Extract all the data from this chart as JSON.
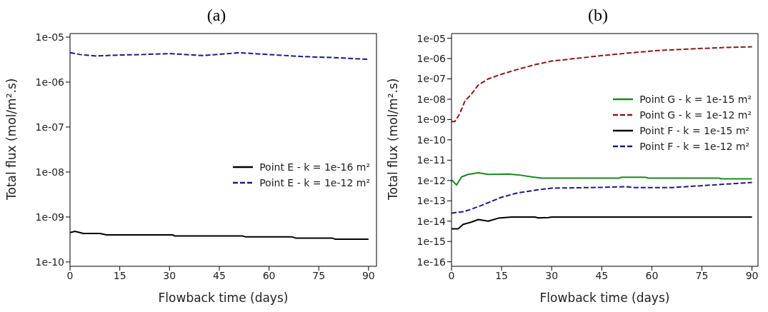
{
  "chart_data": [
    {
      "type": "line",
      "title": "(a)",
      "xlabel": "Flowback time (days)",
      "ylabel": "Total flux (mol/m².s)",
      "log": "y",
      "xlim": [
        0,
        92.4
      ],
      "xticks": [
        0,
        15,
        30,
        45,
        60,
        75,
        90
      ],
      "ylim": [
        8e-11,
        1.2e-05
      ],
      "yticks": [
        {
          "value": 1e-10,
          "label": "1e-10"
        },
        {
          "value": 1e-09,
          "label": "1e-09"
        },
        {
          "value": 1e-08,
          "label": "1e-08"
        },
        {
          "value": 1e-07,
          "label": "1e-07"
        },
        {
          "value": 1e-06,
          "label": "1e-06"
        },
        {
          "value": 1e-05,
          "label": "1e-05"
        }
      ],
      "grid": false,
      "legend": "right",
      "series": [
        {
          "name": "Point E - k = 1e-16 m²",
          "color": "#000000",
          "line_style": "solid",
          "x": [
            0,
            1.5,
            4,
            9,
            11,
            31,
            31.5,
            52,
            53,
            67,
            68,
            79,
            80,
            90
          ],
          "values": [
            4.5e-10,
            4.8e-10,
            4.3e-10,
            4.3e-10,
            4e-10,
            4e-10,
            3.8e-10,
            3.8e-10,
            3.6e-10,
            3.6e-10,
            3.4e-10,
            3.4e-10,
            3.2e-10,
            3.2e-10
          ]
        },
        {
          "name": "Point E - k = 1e-12 m²",
          "color": "#1a1a8c",
          "line_style": "dashed",
          "x": [
            0,
            3,
            8,
            15,
            22,
            30,
            40,
            51,
            60,
            70,
            80,
            90
          ],
          "values": [
            4.5e-06,
            4.1e-06,
            3.8e-06,
            4e-06,
            4.1e-06,
            4.3e-06,
            3.9e-06,
            4.5e-06,
            4.1e-06,
            3.7e-06,
            3.5e-06,
            3.2e-06
          ]
        }
      ]
    },
    {
      "type": "line",
      "title": "(b)",
      "xlabel": "Flowback time (days)",
      "ylabel": "Total flux (mol/m².s)",
      "log": "y",
      "xlim": [
        0,
        91.8
      ],
      "xticks": [
        0,
        15,
        30,
        45,
        60,
        75,
        90
      ],
      "ylim": [
        6e-17,
        1.7e-05
      ],
      "yticks": [
        {
          "value": 1e-16,
          "label": "1e-16"
        },
        {
          "value": 1e-15,
          "label": "1e-15"
        },
        {
          "value": 1e-14,
          "label": "1e-14"
        },
        {
          "value": 1e-13,
          "label": "1e-13"
        },
        {
          "value": 1e-12,
          "label": "1e-12"
        },
        {
          "value": 1e-11,
          "label": "1e-11"
        },
        {
          "value": 1e-10,
          "label": "1e-10"
        },
        {
          "value": 1e-09,
          "label": "1e-09"
        },
        {
          "value": 1e-08,
          "label": "1e-08"
        },
        {
          "value": 1e-07,
          "label": "1e-07"
        },
        {
          "value": 1e-06,
          "label": "1e-06"
        },
        {
          "value": 1e-05,
          "label": "1e-05"
        }
      ],
      "grid": false,
      "legend": "top right",
      "series": [
        {
          "name": "Point G - k = 1e-15 m²",
          "color": "#1a8c1a",
          "line_style": "solid",
          "x": [
            0,
            1.5,
            3,
            5,
            8,
            11,
            17,
            20,
            24,
            27,
            50,
            51,
            58,
            59,
            80,
            81,
            90
          ],
          "values": [
            1.1e-12,
            6e-13,
            1.5e-12,
            2e-12,
            2.4e-12,
            2e-12,
            2.1e-12,
            1.9e-12,
            1.5e-12,
            1.3e-12,
            1.3e-12,
            1.45e-12,
            1.45e-12,
            1.3e-12,
            1.3e-12,
            1.2e-12,
            1.2e-12
          ]
        },
        {
          "name": "Point G - k = 1e-12 m²",
          "color": "#8b1a1a",
          "line_style": "dashed",
          "x": [
            0,
            1,
            2.5,
            4,
            6,
            8,
            11,
            15,
            20,
            25,
            30,
            37,
            45,
            55,
            62,
            72,
            82,
            90
          ],
          "values": [
            8e-10,
            8e-10,
            2e-09,
            8e-09,
            1.8e-08,
            5e-08,
            1e-07,
            1.7e-07,
            3e-07,
            5e-07,
            7.5e-07,
            1e-06,
            1.4e-06,
            2e-06,
            2.5e-06,
            3e-06,
            3.5e-06,
            3.8e-06
          ]
        },
        {
          "name": "Point F - k = 1e-15 m²",
          "color": "#000000",
          "line_style": "solid",
          "x": [
            0,
            2,
            3.5,
            6,
            8,
            11,
            14,
            18,
            25,
            26,
            29,
            30,
            90
          ],
          "values": [
            4.2e-15,
            4.2e-15,
            7e-15,
            9e-15,
            1.2e-14,
            1e-14,
            1.4e-14,
            1.6e-14,
            1.6e-14,
            1.45e-14,
            1.5e-14,
            1.6e-14,
            1.6e-14
          ]
        },
        {
          "name": "Point F - k = 1e-12 m²",
          "color": "#1a1a8c",
          "line_style": "dashed",
          "x": [
            0,
            4,
            9,
            15,
            20,
            26,
            30,
            45,
            52,
            55,
            66,
            78,
            90
          ],
          "values": [
            2.5e-14,
            3e-14,
            6e-14,
            1.5e-13,
            2.5e-13,
            3.5e-13,
            4.2e-13,
            4.6e-13,
            5e-13,
            4.5e-13,
            4.5e-13,
            6e-13,
            8e-13
          ]
        }
      ]
    }
  ]
}
